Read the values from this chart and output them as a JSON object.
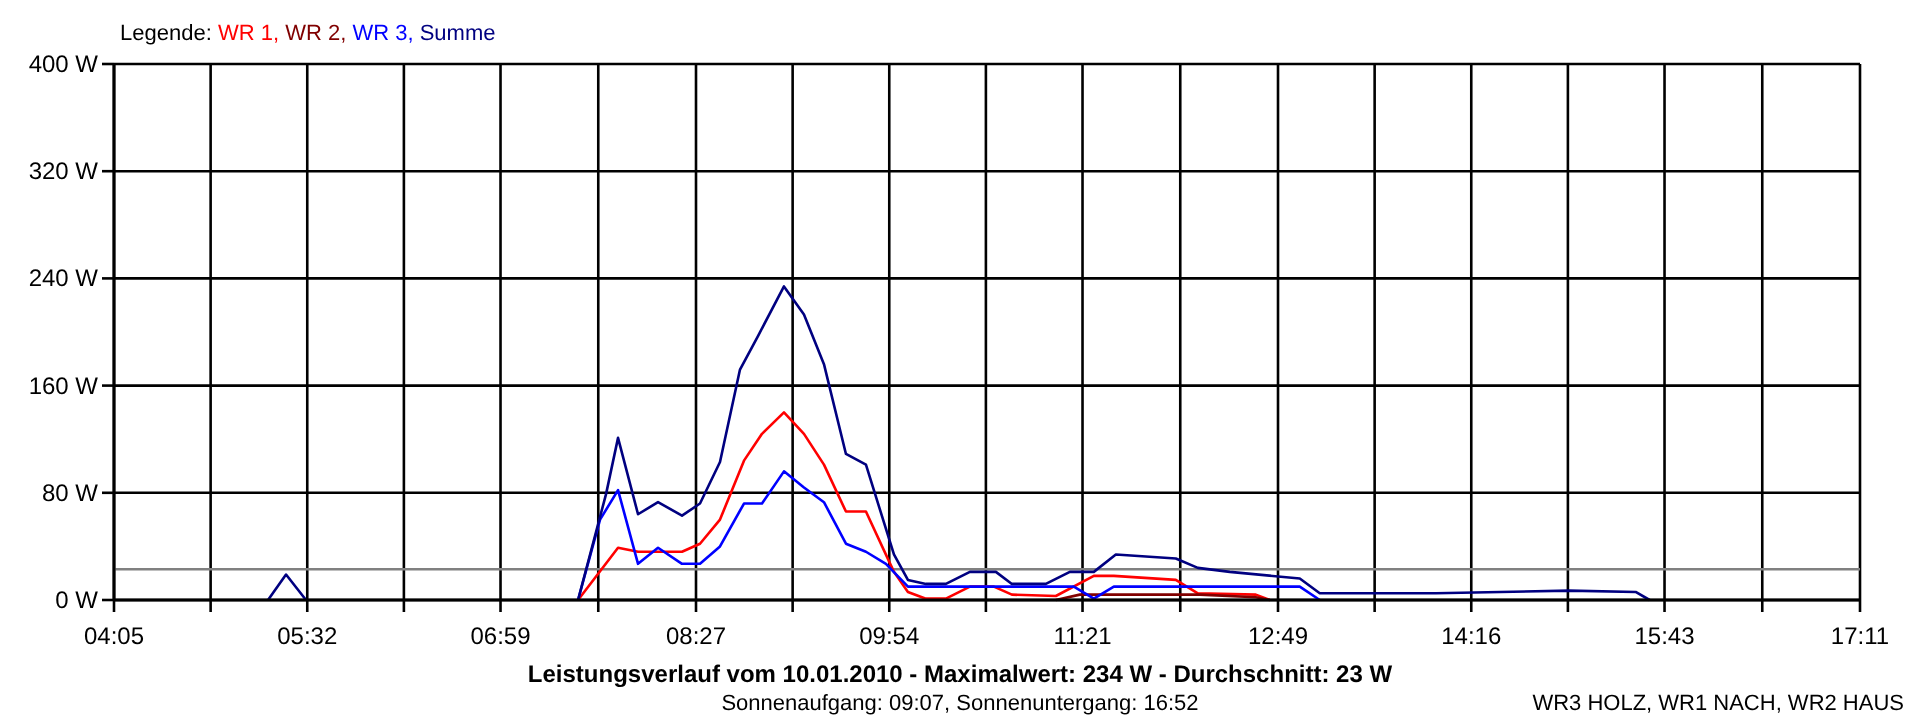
{
  "chart_data": {
    "type": "line",
    "title": "Leistungsverlauf vom 10.01.2010 - Maximalwert: 234 W - Durchschnitt: 23 W",
    "subtitle": "Sonnenaufgang: 09:07, Sonnenuntergang: 16:52",
    "legend_title": "Legende:",
    "annotations": [
      "WR3 HOLZ, WR1 NACH, WR2 HAUS"
    ],
    "xlim": [
      4.0833,
      17.1833
    ],
    "xticks": [
      {
        "value": 4.0833,
        "label": "04:05"
      },
      {
        "value": 4.8083,
        "label": null
      },
      {
        "value": 5.5333,
        "label": "05:32"
      },
      {
        "value": 6.2583,
        "label": null
      },
      {
        "value": 6.9833,
        "label": "06:59"
      },
      {
        "value": 7.7167,
        "label": null
      },
      {
        "value": 8.45,
        "label": "08:27"
      },
      {
        "value": 9.175,
        "label": null
      },
      {
        "value": 9.9,
        "label": "09:54"
      },
      {
        "value": 10.625,
        "label": null
      },
      {
        "value": 11.35,
        "label": "11:21"
      },
      {
        "value": 12.0833,
        "label": null
      },
      {
        "value": 12.8167,
        "label": "12:49"
      },
      {
        "value": 13.5417,
        "label": null
      },
      {
        "value": 14.2667,
        "label": "14:16"
      },
      {
        "value": 14.9917,
        "label": null
      },
      {
        "value": 15.7167,
        "label": "15:43"
      },
      {
        "value": 16.45,
        "label": null
      },
      {
        "value": 17.1833,
        "label": "17:11"
      }
    ],
    "ylim": [
      0,
      400
    ],
    "yticks": [
      {
        "value": 0,
        "label": "0 W"
      },
      {
        "value": 80,
        "label": "80 W"
      },
      {
        "value": 160,
        "label": "160 W"
      },
      {
        "value": 240,
        "label": "240 W"
      },
      {
        "value": 320,
        "label": "320 W"
      },
      {
        "value": 400,
        "label": "400 W"
      }
    ],
    "grid": true,
    "legend": "top left",
    "marker": "none",
    "line_style": "solid",
    "ref_lines": [
      {
        "axis": "y",
        "value": 23,
        "color": "#808080"
      }
    ],
    "series": [
      {
        "name": "WR 1,",
        "color": "#ff0000",
        "x": [
          7.565,
          7.865,
          8.015,
          8.345,
          8.48,
          8.63,
          8.81,
          8.945,
          9.11,
          9.26,
          9.41,
          9.575,
          9.725,
          9.935,
          10.04,
          10.175,
          10.325,
          10.505,
          10.685,
          10.82,
          11.15,
          11.435,
          11.585,
          12.05,
          12.215,
          12.65,
          12.755
        ],
        "values": [
          0,
          39,
          36,
          36,
          42,
          60,
          104,
          124,
          140,
          124,
          101,
          66,
          66,
          21,
          6,
          1,
          1,
          10,
          10,
          4,
          3,
          18,
          18,
          15,
          5,
          4,
          0
        ]
      },
      {
        "name": "WR 2,",
        "color": "#800000",
        "x": [
          11.15,
          11.33,
          12.23,
          12.65,
          12.755
        ],
        "values": [
          0,
          4,
          4,
          2,
          0
        ]
      },
      {
        "name": "WR 3,",
        "color": "#0000ff",
        "x": [
          7.565,
          7.73,
          7.865,
          8.015,
          8.165,
          8.345,
          8.48,
          8.63,
          8.81,
          8.945,
          9.11,
          9.26,
          9.41,
          9.575,
          9.725,
          9.875,
          10.04,
          11.285,
          11.435,
          11.585,
          12.98,
          13.13
        ],
        "values": [
          0,
          60,
          82,
          27,
          39,
          27,
          27,
          40,
          72,
          72,
          96,
          84,
          73,
          42,
          36,
          27,
          10,
          10,
          1,
          10,
          10,
          0
        ]
      },
      {
        "name": "Summe",
        "color": "#000080",
        "x": [
          5.239,
          5.374,
          5.524,
          6.0,
          7.565,
          7.775,
          7.865,
          8.015,
          8.165,
          8.345,
          8.48,
          8.63,
          8.78,
          8.915,
          9.11,
          9.26,
          9.41,
          9.575,
          9.725,
          9.935,
          10.04,
          10.175,
          10.325,
          10.505,
          10.7,
          10.82,
          11.075,
          11.255,
          11.435,
          11.6,
          12.05,
          12.215,
          12.455,
          12.98,
          13.13,
          14.0,
          15.0,
          15.5,
          15.605
        ],
        "values": [
          0,
          19,
          0,
          null,
          0,
          79,
          121,
          64,
          73,
          63,
          72,
          103,
          172,
          197,
          234,
          213,
          176,
          109,
          101,
          34,
          15,
          12,
          12,
          21,
          21,
          12,
          12,
          21,
          21,
          34,
          31,
          24,
          21,
          16,
          5,
          5,
          7,
          6,
          0
        ]
      }
    ]
  }
}
